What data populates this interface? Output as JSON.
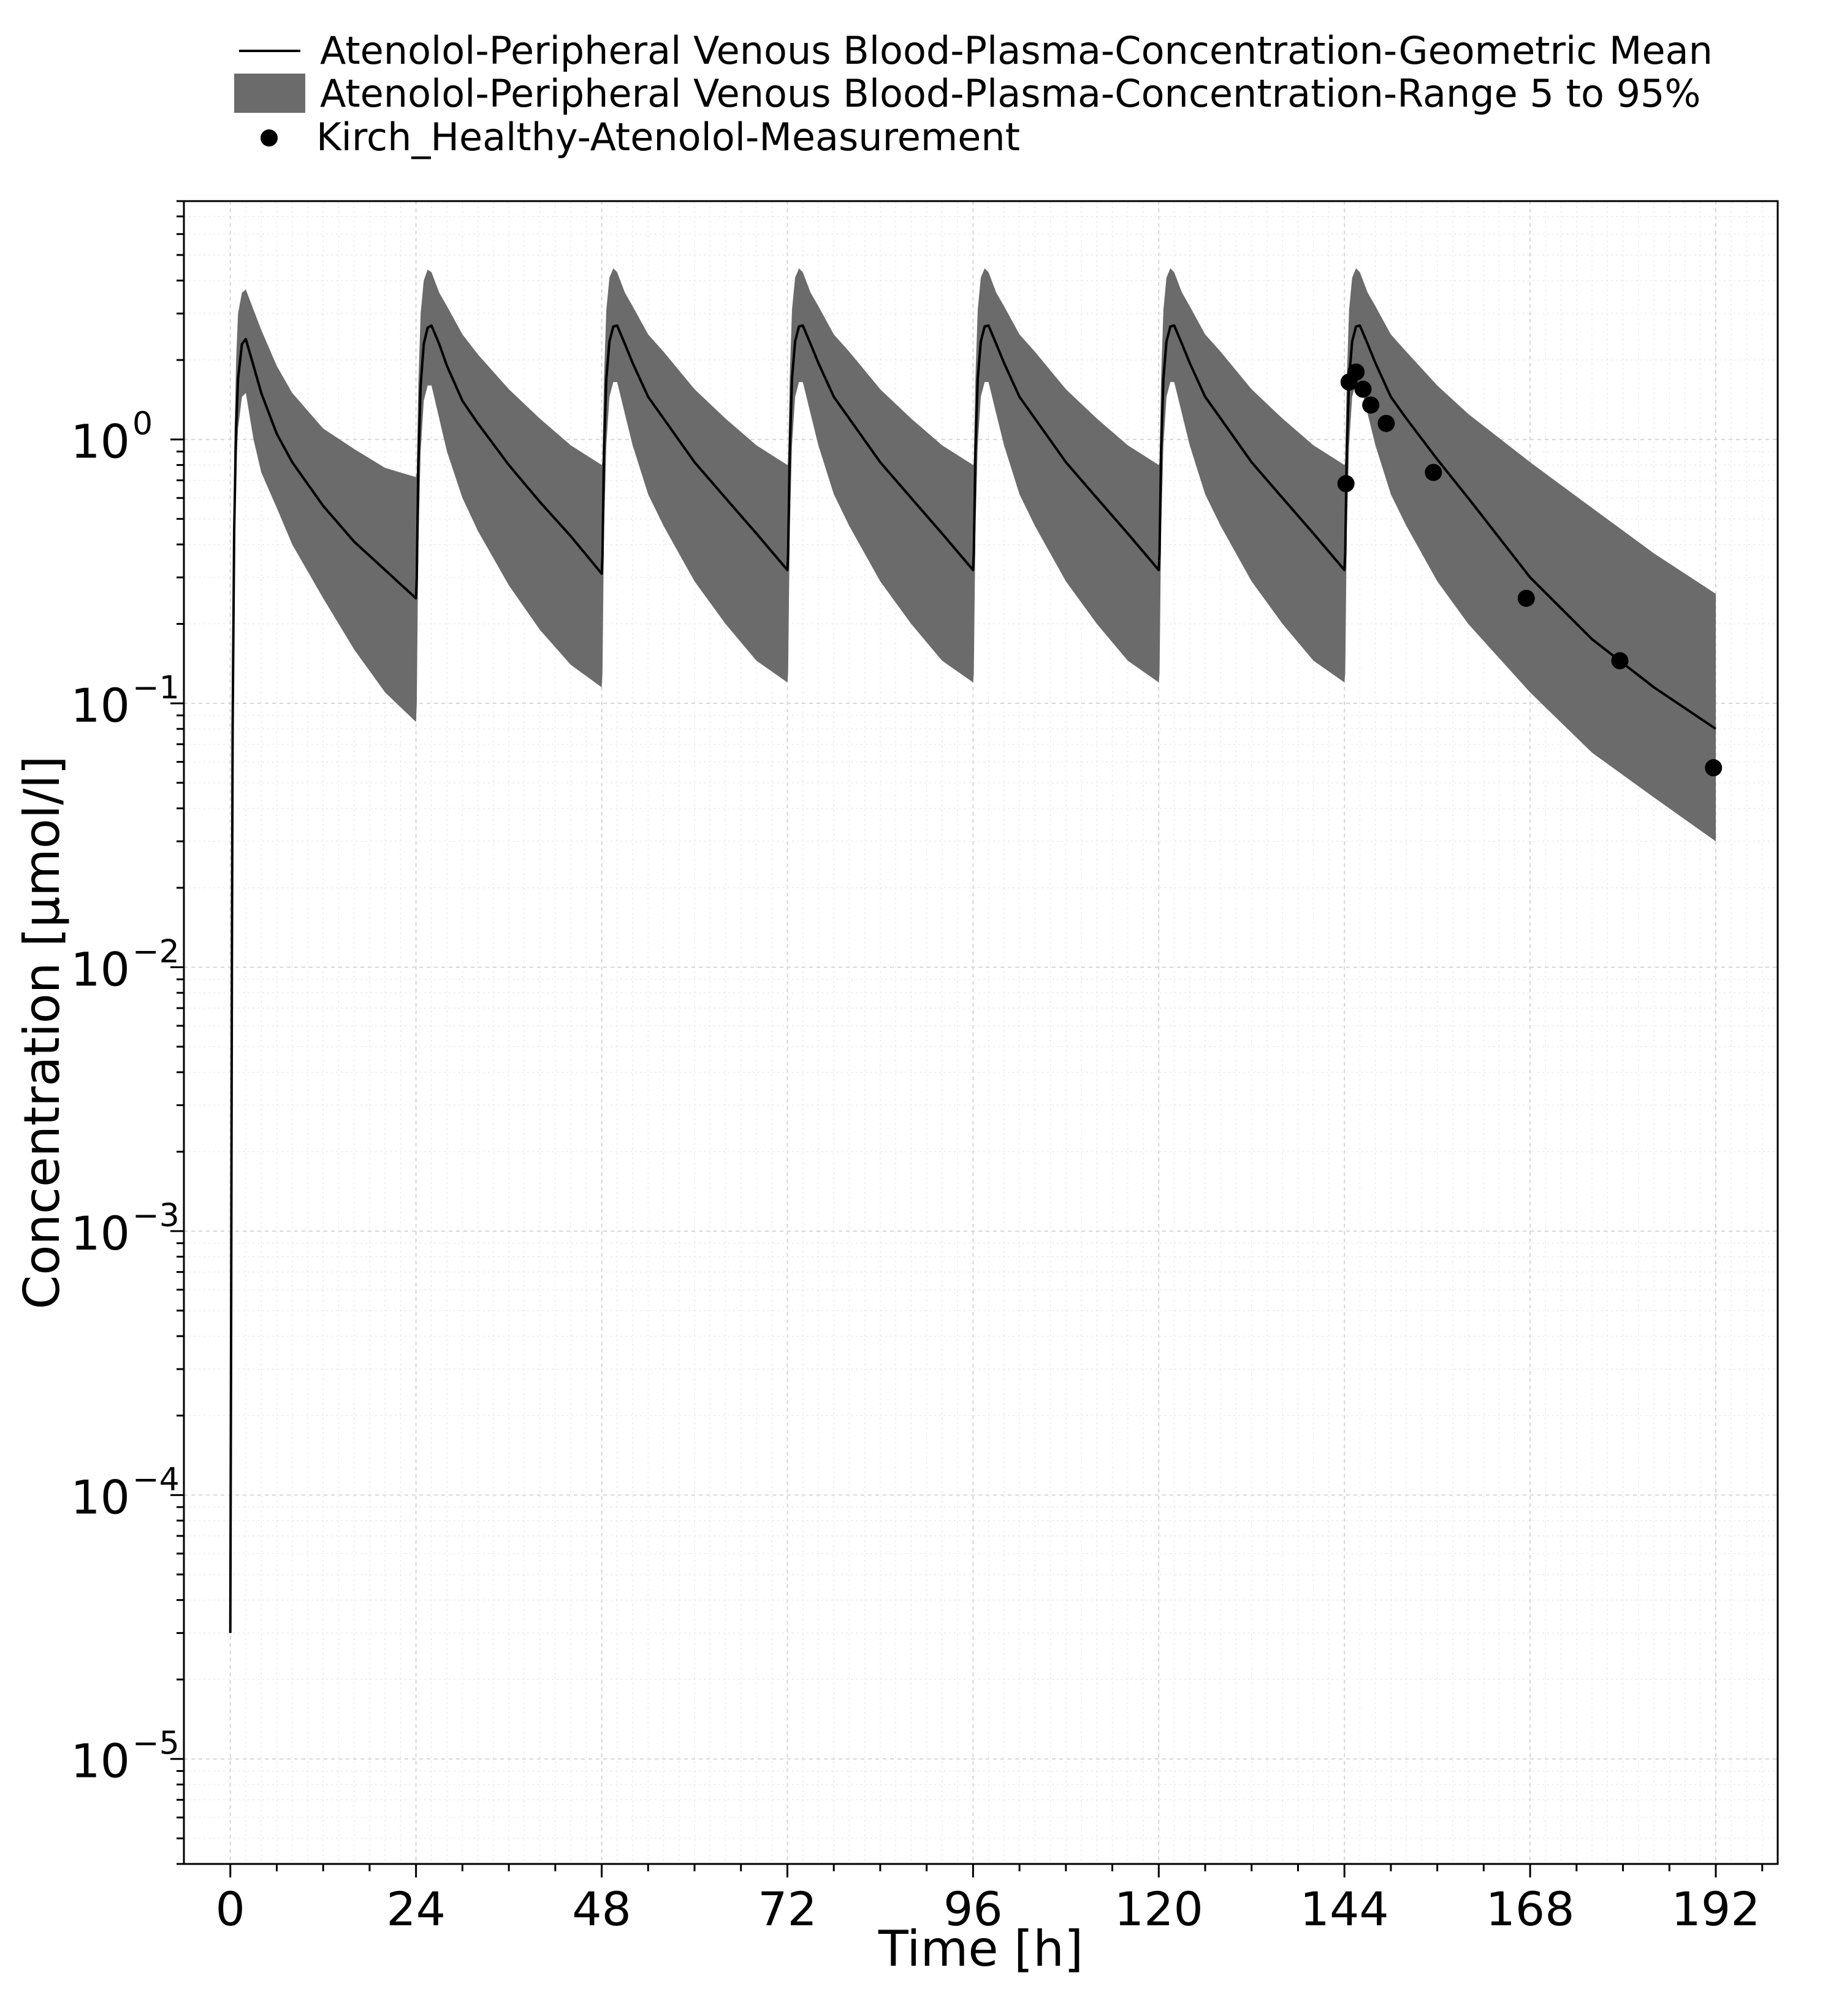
{
  "chart_data": {
    "type": "line",
    "title": "",
    "xlabel": "Time [h]",
    "ylabel": "Concentration [µmol/l]",
    "xlim": [
      -6,
      200
    ],
    "ylim": [
      4e-06,
      8
    ],
    "yscale": "log",
    "x_ticks": [
      0,
      24,
      48,
      72,
      96,
      120,
      144,
      168,
      192
    ],
    "x_tick_labels": [
      "0",
      "24",
      "48",
      "72",
      "96",
      "120",
      "144",
      "168",
      "192"
    ],
    "y_ticks": [
      1e-05,
      0.0001,
      0.001,
      0.01,
      0.1,
      1
    ],
    "y_tick_labels": [
      {
        "base": "10",
        "exp": "−5"
      },
      {
        "base": "10",
        "exp": "−4"
      },
      {
        "base": "10",
        "exp": "−3"
      },
      {
        "base": "10",
        "exp": "−2"
      },
      {
        "base": "10",
        "exp": "−1"
      },
      {
        "base": "10",
        "exp": "0"
      }
    ],
    "grid": true,
    "legend_position": "top",
    "dose_interval_h": 24,
    "series": [
      {
        "name": "Atenolol-Peripheral Venous Blood-Plasma-Concentration-Geometric Mean",
        "kind": "line",
        "color": "#000000",
        "x": [
          0,
          0.1,
          0.2,
          0.3,
          0.5,
          0.75,
          1,
          1.5,
          2,
          3,
          4,
          6,
          8,
          12,
          16,
          20,
          24,
          24.1,
          24.3,
          24.6,
          25,
          25.5,
          26,
          27,
          28,
          30,
          32,
          36,
          40,
          44,
          48,
          48.1,
          48.3,
          48.6,
          49,
          49.5,
          50,
          51,
          52,
          54,
          56,
          60,
          64,
          68,
          72,
          72.1,
          72.3,
          72.6,
          73,
          73.5,
          74,
          75,
          76,
          78,
          80,
          84,
          88,
          92,
          96,
          96.1,
          96.3,
          96.6,
          97,
          97.5,
          98,
          99,
          100,
          102,
          104,
          108,
          112,
          116,
          120,
          120.1,
          120.3,
          120.6,
          121,
          121.5,
          122,
          123,
          124,
          126,
          128,
          132,
          136,
          140,
          144,
          144.1,
          144.3,
          144.6,
          145,
          145.5,
          146,
          147,
          148,
          150,
          152,
          156,
          160,
          168,
          176,
          184,
          192
        ],
        "y": [
          3e-05,
          0.0004,
          0.01,
          0.08,
          0.45,
          1.1,
          1.7,
          2.3,
          2.4,
          1.9,
          1.5,
          1.05,
          0.82,
          0.56,
          0.41,
          0.32,
          0.25,
          0.3,
          0.8,
          1.6,
          2.3,
          2.65,
          2.7,
          2.3,
          1.9,
          1.4,
          1.15,
          0.8,
          0.58,
          0.43,
          0.31,
          0.36,
          0.9,
          1.7,
          2.35,
          2.68,
          2.7,
          2.3,
          1.95,
          1.45,
          1.2,
          0.82,
          0.6,
          0.44,
          0.32,
          0.37,
          0.9,
          1.7,
          2.35,
          2.68,
          2.7,
          2.3,
          1.95,
          1.45,
          1.2,
          0.82,
          0.6,
          0.44,
          0.32,
          0.37,
          0.9,
          1.7,
          2.35,
          2.68,
          2.7,
          2.3,
          1.95,
          1.45,
          1.2,
          0.82,
          0.6,
          0.44,
          0.32,
          0.37,
          0.9,
          1.7,
          2.35,
          2.68,
          2.7,
          2.3,
          1.95,
          1.45,
          1.2,
          0.82,
          0.6,
          0.44,
          0.32,
          0.37,
          0.9,
          1.7,
          2.35,
          2.68,
          2.7,
          2.3,
          1.95,
          1.45,
          1.2,
          0.84,
          0.6,
          0.3,
          0.175,
          0.115,
          0.08
        ]
      },
      {
        "name": "Atenolol-Peripheral Venous Blood-Plasma-Concentration-Range 5 to 95%",
        "kind": "band",
        "color": "#6b6b6b",
        "x": [
          0,
          0.1,
          0.2,
          0.3,
          0.5,
          0.75,
          1,
          1.5,
          2,
          3,
          4,
          6,
          8,
          12,
          16,
          20,
          24,
          24.1,
          24.3,
          24.6,
          25,
          25.5,
          26,
          27,
          28,
          30,
          32,
          36,
          40,
          44,
          48,
          48.1,
          48.3,
          48.6,
          49,
          49.5,
          50,
          51,
          52,
          54,
          56,
          60,
          64,
          68,
          72,
          72.1,
          72.3,
          72.6,
          73,
          73.5,
          74,
          75,
          76,
          78,
          80,
          84,
          88,
          92,
          96,
          96.1,
          96.3,
          96.6,
          97,
          97.5,
          98,
          99,
          100,
          102,
          104,
          108,
          112,
          116,
          120,
          120.1,
          120.3,
          120.6,
          121,
          121.5,
          122,
          123,
          124,
          126,
          128,
          132,
          136,
          140,
          144,
          144.1,
          144.3,
          144.6,
          145,
          145.5,
          146,
          147,
          148,
          150,
          152,
          156,
          160,
          168,
          176,
          184,
          192
        ],
        "lower": [
          3e-05,
          0.0004,
          0.01,
          0.08,
          0.3,
          0.8,
          1.1,
          1.45,
          1.5,
          1.0,
          0.75,
          0.55,
          0.4,
          0.25,
          0.16,
          0.11,
          0.085,
          0.1,
          0.4,
          0.9,
          1.4,
          1.6,
          1.6,
          1.2,
          0.9,
          0.6,
          0.45,
          0.28,
          0.19,
          0.14,
          0.115,
          0.13,
          0.45,
          0.95,
          1.45,
          1.65,
          1.65,
          1.25,
          0.95,
          0.62,
          0.47,
          0.29,
          0.2,
          0.145,
          0.12,
          0.13,
          0.45,
          0.95,
          1.45,
          1.65,
          1.65,
          1.25,
          0.95,
          0.62,
          0.47,
          0.29,
          0.2,
          0.145,
          0.12,
          0.13,
          0.45,
          0.95,
          1.45,
          1.65,
          1.65,
          1.25,
          0.95,
          0.62,
          0.47,
          0.29,
          0.2,
          0.145,
          0.12,
          0.13,
          0.45,
          0.95,
          1.45,
          1.65,
          1.65,
          1.25,
          0.95,
          0.62,
          0.47,
          0.29,
          0.2,
          0.145,
          0.12,
          0.13,
          0.45,
          0.95,
          1.45,
          1.65,
          1.65,
          1.25,
          0.95,
          0.62,
          0.47,
          0.29,
          0.2,
          0.11,
          0.065,
          0.044,
          0.03
        ],
        "upper": [
          3e-05,
          0.0004,
          0.01,
          0.1,
          0.9,
          2.0,
          3.0,
          3.6,
          3.7,
          3.1,
          2.6,
          1.9,
          1.5,
          1.1,
          0.92,
          0.78,
          0.72,
          0.75,
          1.6,
          3.0,
          4.0,
          4.4,
          4.3,
          3.6,
          3.2,
          2.5,
          2.1,
          1.55,
          1.2,
          0.95,
          0.8,
          0.82,
          1.7,
          3.1,
          4.1,
          4.45,
          4.3,
          3.6,
          3.2,
          2.5,
          2.15,
          1.55,
          1.2,
          0.95,
          0.8,
          0.82,
          1.7,
          3.1,
          4.1,
          4.45,
          4.3,
          3.6,
          3.2,
          2.5,
          2.15,
          1.55,
          1.2,
          0.95,
          0.8,
          0.82,
          1.7,
          3.1,
          4.1,
          4.45,
          4.3,
          3.6,
          3.2,
          2.5,
          2.15,
          1.55,
          1.2,
          0.95,
          0.8,
          0.82,
          1.7,
          3.1,
          4.1,
          4.45,
          4.3,
          3.6,
          3.2,
          2.5,
          2.15,
          1.55,
          1.2,
          0.95,
          0.8,
          0.82,
          1.7,
          3.1,
          4.1,
          4.45,
          4.3,
          3.6,
          3.2,
          2.5,
          2.15,
          1.6,
          1.25,
          0.82,
          0.55,
          0.37,
          0.26
        ]
      },
      {
        "name": "Kirch_Healthy-Atenolol-Measurement",
        "kind": "scatter",
        "color": "#000000",
        "x": [
          144.2,
          144.6,
          145.5,
          146.4,
          147.4,
          149.4,
          155.5,
          167.5,
          179.6,
          191.7
        ],
        "y": [
          0.68,
          1.65,
          1.8,
          1.55,
          1.35,
          1.15,
          0.75,
          0.25,
          0.145,
          0.057
        ]
      }
    ]
  }
}
